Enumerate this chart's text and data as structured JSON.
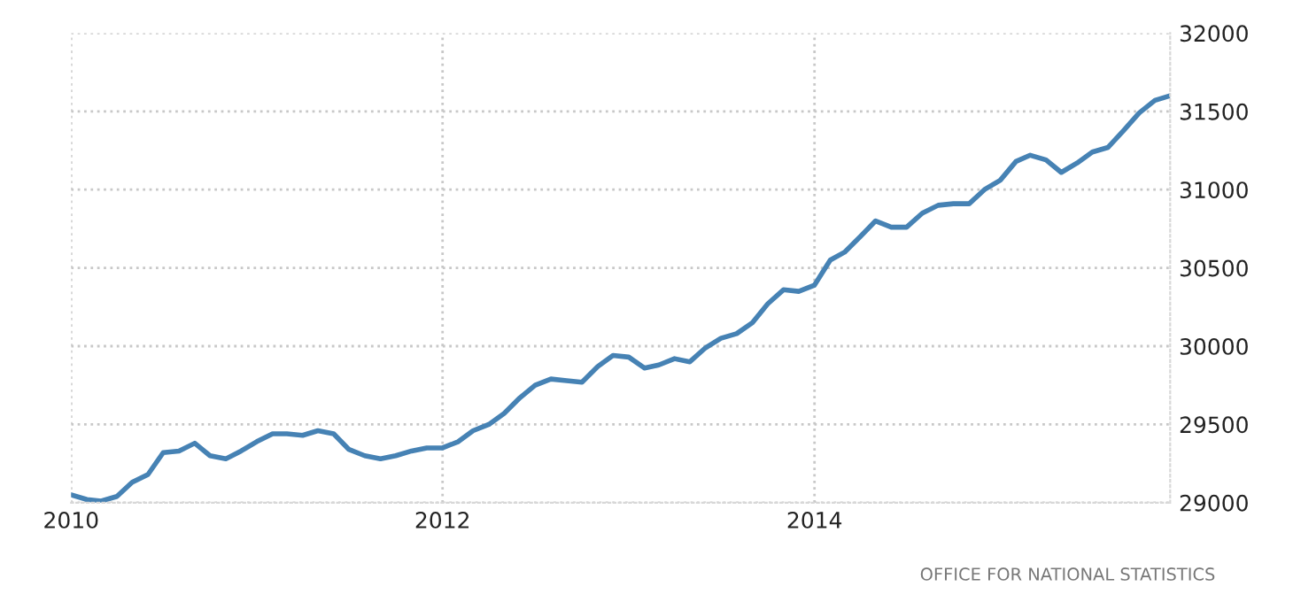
{
  "chart_data": {
    "type": "line",
    "x": [
      "2010-01",
      "2010-02",
      "2010-03",
      "2010-04",
      "2010-05",
      "2010-06",
      "2010-07",
      "2010-08",
      "2010-09",
      "2010-10",
      "2010-11",
      "2010-12",
      "2011-01",
      "2011-02",
      "2011-03",
      "2011-04",
      "2011-05",
      "2011-06",
      "2011-07",
      "2011-08",
      "2011-09",
      "2011-10",
      "2011-11",
      "2011-12",
      "2012-01",
      "2012-02",
      "2012-03",
      "2012-04",
      "2012-05",
      "2012-06",
      "2012-07",
      "2012-08",
      "2012-09",
      "2012-10",
      "2012-11",
      "2012-12",
      "2013-01",
      "2013-02",
      "2013-03",
      "2013-04",
      "2013-05",
      "2013-06",
      "2013-07",
      "2013-08",
      "2013-09",
      "2013-10",
      "2013-11",
      "2013-12",
      "2014-01",
      "2014-02",
      "2014-03",
      "2014-04",
      "2014-05",
      "2014-06",
      "2014-07",
      "2014-08",
      "2014-09",
      "2014-10",
      "2014-11",
      "2014-12",
      "2015-01",
      "2015-02",
      "2015-03",
      "2015-04",
      "2015-05",
      "2015-06",
      "2015-07",
      "2015-08",
      "2015-09",
      "2015-10",
      "2015-11",
      "2015-12"
    ],
    "series": [
      {
        "color": "#4682b4",
        "values": [
          29050,
          29020,
          29010,
          29040,
          29130,
          29180,
          29320,
          29330,
          29380,
          29300,
          29280,
          29330,
          29390,
          29440,
          29440,
          29430,
          29460,
          29440,
          29340,
          29300,
          29280,
          29300,
          29330,
          29350,
          29350,
          29390,
          29460,
          29500,
          29570,
          29670,
          29750,
          29790,
          29780,
          29770,
          29870,
          29940,
          29930,
          29860,
          29880,
          29920,
          29900,
          29990,
          30050,
          30080,
          30150,
          30270,
          30360,
          30350,
          30390,
          30550,
          30600,
          30700,
          30800,
          30760,
          30760,
          30850,
          30900,
          30910,
          30910,
          31000,
          31060,
          31180,
          31220,
          31190,
          31110,
          31170,
          31240,
          31270,
          31380,
          31490,
          31570,
          31600
        ]
      }
    ],
    "xlim": [
      "2010-01",
      "2015-12"
    ],
    "xticks": [
      {
        "value": "2010",
        "label": "2010"
      },
      {
        "value": "2012",
        "label": "2012"
      },
      {
        "value": "2014",
        "label": "2014"
      }
    ],
    "ylim": [
      29000,
      32000
    ],
    "yticks": [
      29000,
      29500,
      30000,
      30500,
      31000,
      31500,
      32000
    ],
    "grid": true,
    "marker": "none",
    "line_style": "solid",
    "annotations": [
      "OFFICE FOR NATIONAL STATISTICS"
    ]
  }
}
